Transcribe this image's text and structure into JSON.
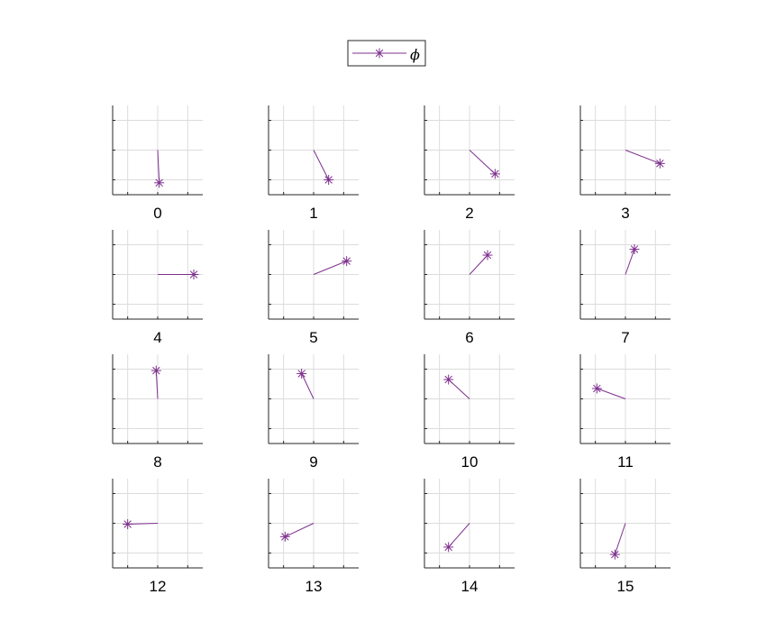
{
  "chart_data": {
    "type": "line",
    "legend": {
      "entries": [
        "ϕ"
      ],
      "placement": "top-center",
      "marker": "asterisk"
    },
    "series_color": "#7e2f8e",
    "grid": true,
    "xlim": [
      -1.5,
      1.5
    ],
    "ylim": [
      -1.5,
      1.5
    ],
    "panels": [
      {
        "label": "0",
        "points": [
          [
            0.0,
            0.0
          ],
          [
            0.05,
            -1.1
          ]
        ]
      },
      {
        "label": "1",
        "points": [
          [
            0.0,
            0.0
          ],
          [
            0.5,
            -1.0
          ]
        ]
      },
      {
        "label": "2",
        "points": [
          [
            0.0,
            0.0
          ],
          [
            0.85,
            -0.8
          ]
        ]
      },
      {
        "label": "3",
        "points": [
          [
            0.0,
            0.0
          ],
          [
            1.15,
            -0.45
          ]
        ]
      },
      {
        "label": "4",
        "points": [
          [
            0.0,
            0.0
          ],
          [
            1.2,
            0.0
          ]
        ]
      },
      {
        "label": "5",
        "points": [
          [
            0.0,
            0.0
          ],
          [
            1.1,
            0.45
          ]
        ]
      },
      {
        "label": "6",
        "points": [
          [
            0.0,
            0.0
          ],
          [
            0.6,
            0.65
          ]
        ]
      },
      {
        "label": "7",
        "points": [
          [
            0.0,
            0.0
          ],
          [
            0.3,
            0.85
          ]
        ]
      },
      {
        "label": "8",
        "points": [
          [
            0.0,
            0.0
          ],
          [
            -0.05,
            0.95
          ]
        ]
      },
      {
        "label": "9",
        "points": [
          [
            0.0,
            0.0
          ],
          [
            -0.4,
            0.85
          ]
        ]
      },
      {
        "label": "10",
        "points": [
          [
            0.0,
            0.0
          ],
          [
            -0.7,
            0.65
          ]
        ]
      },
      {
        "label": "11",
        "points": [
          [
            0.0,
            0.0
          ],
          [
            -0.95,
            0.35
          ]
        ]
      },
      {
        "label": "12",
        "points": [
          [
            0.0,
            0.0
          ],
          [
            -1.0,
            -0.03
          ]
        ]
      },
      {
        "label": "13",
        "points": [
          [
            0.0,
            0.0
          ],
          [
            -0.95,
            -0.45
          ]
        ]
      },
      {
        "label": "14",
        "points": [
          [
            0.0,
            0.0
          ],
          [
            -0.7,
            -0.8
          ]
        ]
      },
      {
        "label": "15",
        "points": [
          [
            0.0,
            0.0
          ],
          [
            -0.35,
            -1.05
          ]
        ]
      }
    ]
  }
}
